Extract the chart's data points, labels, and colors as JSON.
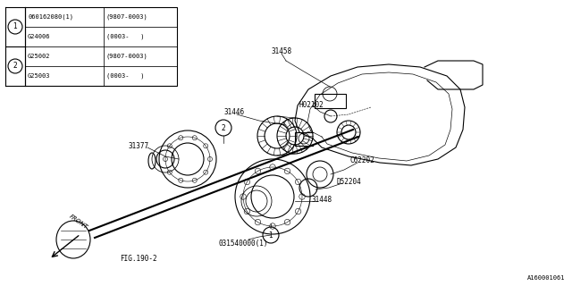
{
  "bg_color": "#ffffff",
  "line_color": "#000000",
  "fig_width": 6.4,
  "fig_height": 3.2,
  "table_rows": [
    [
      "060162080(1)",
      "(9807-0003)"
    ],
    [
      "G24006",
      "(0003-   )"
    ],
    [
      "G25002",
      "(9807-0003)"
    ],
    [
      "G25003",
      "(0003-   )"
    ]
  ],
  "bottom_label": "A160001061"
}
